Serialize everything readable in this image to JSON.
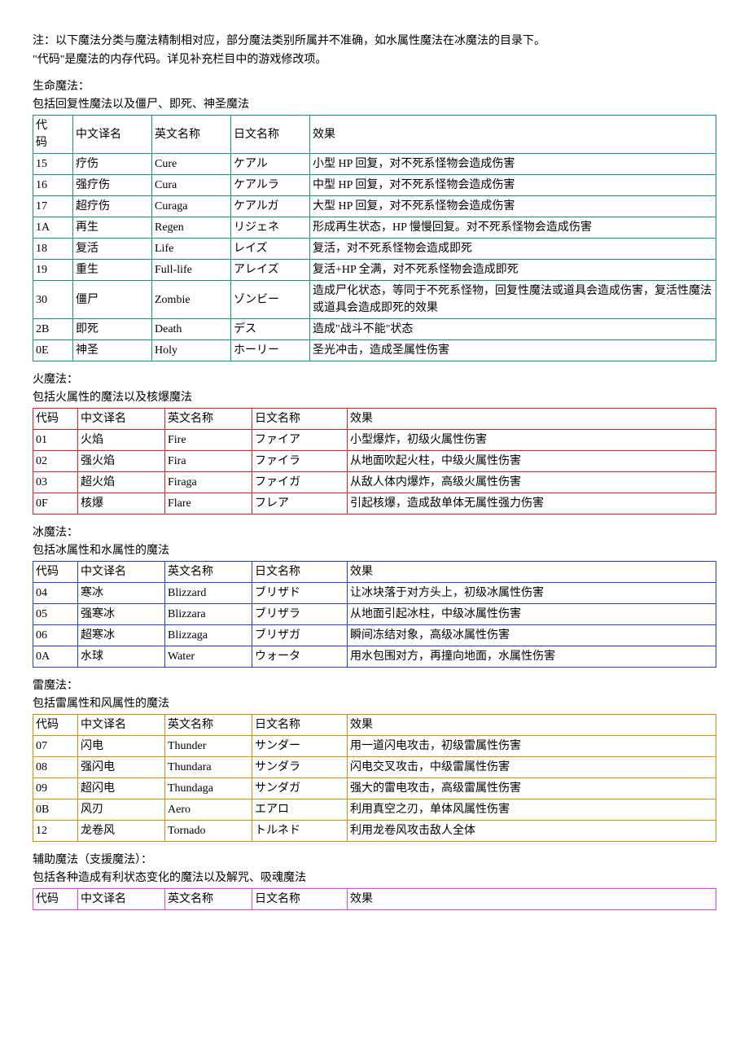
{
  "intro": {
    "line1": "注：以下魔法分类与魔法精制相对应，部分魔法类别所属并不准确，如水属性魔法在冰魔法的目录下。",
    "line2": "\"代码\"是魔法的内存代码。详见补充栏目中的游戏修改项。"
  },
  "columns": {
    "code": "代码",
    "code_multiline": "代\n码",
    "cn": "中文译名",
    "en": "英文名称",
    "jp": "日文名称",
    "effect": "效果"
  },
  "sections": [
    {
      "title": "生命魔法：",
      "subtitle": "包括回复性魔法以及僵尸、即死、神圣魔法",
      "border_color": "#1f8a80",
      "multiline_code_header": true,
      "col_widths": "narrow",
      "rows": [
        {
          "code": "15",
          "cn": "疗伤",
          "en": "Cure",
          "jp": "ケアル",
          "effect": "小型 HP 回复，对不死系怪物会造成伤害"
        },
        {
          "code": "16",
          "cn": "强疗伤",
          "en": "Cura",
          "jp": "ケアルラ",
          "effect": "中型 HP 回复，对不死系怪物会造成伤害"
        },
        {
          "code": "17",
          "cn": "超疗伤",
          "en": "Curaga",
          "jp": "ケアルガ",
          "effect": "大型 HP 回复，对不死系怪物会造成伤害"
        },
        {
          "code": "1A",
          "cn": "再生",
          "en": "Regen",
          "jp": "リジェネ",
          "effect": "形成再生状态，HP 慢慢回复。对不死系怪物会造成伤害"
        },
        {
          "code": "18",
          "cn": "复活",
          "en": "Life",
          "jp": "レイズ",
          "effect": "复活，对不死系怪物会造成即死"
        },
        {
          "code": "19",
          "cn": "重生",
          "en": "Full-life",
          "jp": "アレイズ",
          "effect": "复活+HP 全满，对不死系怪物会造成即死"
        },
        {
          "code": "30",
          "cn": "僵尸",
          "en": "Zombie",
          "jp": "ゾンビー",
          "effect": "造成尸化状态，等同于不死系怪物，回复性魔法或道具会造成伤害，复活性魔法或道具会造成即死的效果"
        },
        {
          "code": "2B",
          "cn": "即死",
          "en": "Death",
          "jp": "デス",
          "effect": "造成\"战斗不能\"状态"
        },
        {
          "code": "0E",
          "cn": "神圣",
          "en": "Holy",
          "jp": "ホーリー",
          "effect": "圣光冲击，造成圣属性伤害"
        }
      ]
    },
    {
      "title": "火魔法：",
      "subtitle": "包括火属性的魔法以及核爆魔法",
      "border_color": "#e02020",
      "multiline_code_header": false,
      "col_widths": "wide",
      "rows": [
        {
          "code": "01",
          "cn": "火焰",
          "en": "Fire",
          "jp": "ファイア",
          "effect": "小型爆炸，初级火属性伤害"
        },
        {
          "code": "02",
          "cn": "强火焰",
          "en": "Fira",
          "jp": "ファイラ",
          "effect": "从地面吹起火柱，中级火属性伤害"
        },
        {
          "code": "03",
          "cn": "超火焰",
          "en": "Firaga",
          "jp": "ファイガ",
          "effect": "从敌人体内爆炸，高级火属性伤害"
        },
        {
          "code": "0F",
          "cn": "核爆",
          "en": "Flare",
          "jp": "フレア",
          "effect": "引起核爆，造成敌单体无属性强力伤害"
        }
      ]
    },
    {
      "title": "冰魔法：",
      "subtitle": "包括冰属性和水属性的魔法",
      "border_color": "#2040d0",
      "multiline_code_header": false,
      "col_widths": "wide",
      "rows": [
        {
          "code": "04",
          "cn": "寒冰",
          "en": "Blizzard",
          "jp": "ブリザド",
          "effect": "让冰块落于对方头上，初级冰属性伤害"
        },
        {
          "code": "05",
          "cn": "强寒冰",
          "en": "Blizzara",
          "jp": "ブリザラ",
          "effect": "从地面引起冰柱，中级冰属性伤害"
        },
        {
          "code": "06",
          "cn": "超寒冰",
          "en": "Blizzaga",
          "jp": "ブリザガ",
          "effect": "瞬间冻结对象，高级冰属性伤害"
        },
        {
          "code": "0A",
          "cn": "水球",
          "en": "Water",
          "jp": "ウォータ",
          "effect": "用水包围对方，再撞向地面，水属性伤害"
        }
      ]
    },
    {
      "title": "雷魔法：",
      "subtitle": "包括雷属性和风属性的魔法",
      "border_color": "#d09000",
      "multiline_code_header": false,
      "col_widths": "wide",
      "rows": [
        {
          "code": "07",
          "cn": "闪电",
          "en": "Thunder",
          "jp": "サンダー",
          "effect": "用一道闪电攻击，初级雷属性伤害"
        },
        {
          "code": "08",
          "cn": "强闪电",
          "en": "Thundara",
          "jp": "サンダラ",
          "effect": "闪电交叉攻击，中级雷属性伤害"
        },
        {
          "code": "09",
          "cn": "超闪电",
          "en": "Thundaga",
          "jp": "サンダガ",
          "effect": "强大的雷电攻击，高级雷属性伤害"
        },
        {
          "code": "0B",
          "cn": "风刃",
          "en": "Aero",
          "jp": "エアロ",
          "effect": "利用真空之刃，单体风属性伤害"
        },
        {
          "code": "12",
          "cn": "龙卷风",
          "en": "Tornado",
          "jp": "トルネド",
          "effect": "利用龙卷风攻击敌人全体"
        }
      ]
    },
    {
      "title": "辅助魔法（支援魔法）：",
      "subtitle": "包括各种造成有利状态变化的魔法以及解咒、吸魂魔法",
      "border_color": "#e040e0",
      "multiline_code_header": false,
      "col_widths": "wide",
      "rows": []
    }
  ]
}
